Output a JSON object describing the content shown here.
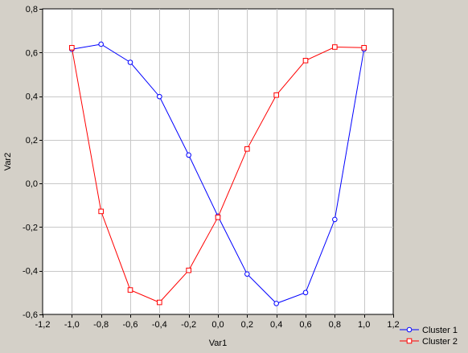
{
  "chart_data": {
    "type": "line",
    "title": "",
    "xlabel": "Var1",
    "ylabel": "Var2",
    "xlim": [
      -1.2,
      1.2
    ],
    "ylim": [
      -0.6,
      0.8
    ],
    "xticks": [
      -1.2,
      -1.0,
      -0.8,
      -0.6,
      -0.4,
      -0.2,
      0.0,
      0.2,
      0.4,
      0.6,
      0.8,
      1.0,
      1.2
    ],
    "yticks": [
      -0.6,
      -0.4,
      -0.2,
      0.0,
      0.2,
      0.4,
      0.6,
      0.8
    ],
    "xtick_labels": [
      "-1,2",
      "-1,0",
      "-0,8",
      "-0,6",
      "-0,4",
      "-0,2",
      "0,0",
      "0,2",
      "0,4",
      "0,6",
      "0,8",
      "1,0",
      "1,2"
    ],
    "ytick_labels": [
      "-0,6",
      "-0,4",
      "-0,2",
      "0,0",
      "0,2",
      "0,4",
      "0,6",
      "0,8"
    ],
    "grid": true,
    "legend_position": "bottom-right",
    "series": [
      {
        "name": "Cluster 1",
        "color": "#0000ff",
        "marker": "circle",
        "points": [
          [
            -1.0,
            0.615
          ],
          [
            -0.8,
            0.638
          ],
          [
            -0.6,
            0.555
          ],
          [
            -0.4,
            0.398
          ],
          [
            -0.2,
            0.13
          ],
          [
            0.0,
            -0.15
          ],
          [
            0.2,
            -0.415
          ],
          [
            0.4,
            -0.55
          ],
          [
            0.6,
            -0.5
          ],
          [
            0.8,
            -0.165
          ],
          [
            1.0,
            0.615
          ]
        ]
      },
      {
        "name": "Cluster 2",
        "color": "#ff0000",
        "marker": "square",
        "points": [
          [
            -1.0,
            0.622
          ],
          [
            -0.8,
            -0.128
          ],
          [
            -0.6,
            -0.488
          ],
          [
            -0.4,
            -0.545
          ],
          [
            -0.2,
            -0.398
          ],
          [
            0.0,
            -0.155
          ],
          [
            0.2,
            0.158
          ],
          [
            0.4,
            0.405
          ],
          [
            0.6,
            0.563
          ],
          [
            0.8,
            0.625
          ],
          [
            1.0,
            0.622
          ]
        ]
      }
    ]
  }
}
